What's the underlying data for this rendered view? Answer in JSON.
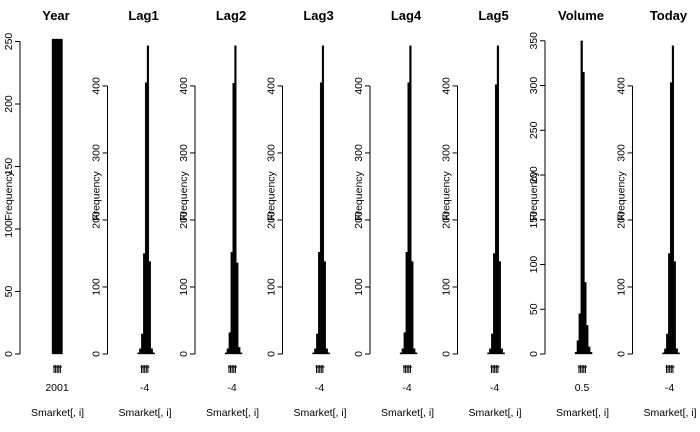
{
  "chart_data": [
    {
      "type": "histogram",
      "title": "Year",
      "xlabel": "Smarket[, i]",
      "ylabel": "Frequency",
      "ylim": [
        0,
        252
      ],
      "yticks": [
        0,
        50,
        100,
        150,
        200,
        250
      ],
      "xticks": [
        "2001"
      ],
      "bars": [
        252,
        252,
        252,
        252,
        252
      ]
    },
    {
      "type": "histogram",
      "title": "Lag1",
      "xlabel": "Smarket[, i]",
      "ylabel": "Frequency",
      "ylim": [
        0,
        470
      ],
      "yticks": [
        0,
        100,
        200,
        300,
        400
      ],
      "xticks": [
        "-4"
      ],
      "bars": [
        2,
        8,
        30,
        150,
        405,
        460,
        138,
        8,
        2
      ]
    },
    {
      "type": "histogram",
      "title": "Lag2",
      "xlabel": "Smarket[, i]",
      "ylabel": "Frequency",
      "ylim": [
        0,
        470
      ],
      "yticks": [
        0,
        100,
        200,
        300,
        400
      ],
      "xticks": [
        "-4"
      ],
      "bars": [
        2,
        8,
        32,
        152,
        404,
        460,
        136,
        10,
        2
      ]
    },
    {
      "type": "histogram",
      "title": "Lag3",
      "xlabel": "Smarket[, i]",
      "ylabel": "Frequency",
      "ylim": [
        0,
        470
      ],
      "yticks": [
        0,
        100,
        200,
        300,
        400
      ],
      "xticks": [
        "-4"
      ],
      "bars": [
        2,
        8,
        30,
        152,
        405,
        460,
        138,
        8,
        2
      ]
    },
    {
      "type": "histogram",
      "title": "Lag4",
      "xlabel": "Smarket[, i]",
      "ylabel": "Frequency",
      "ylim": [
        0,
        470
      ],
      "yticks": [
        0,
        100,
        200,
        300,
        400
      ],
      "xticks": [
        "-4"
      ],
      "bars": [
        2,
        8,
        32,
        152,
        405,
        460,
        138,
        8,
        2
      ]
    },
    {
      "type": "histogram",
      "title": "Lag5",
      "xlabel": "Smarket[, i]",
      "ylabel": "Frequency",
      "ylim": [
        0,
        470
      ],
      "yticks": [
        0,
        100,
        200,
        300,
        400
      ],
      "xticks": [
        "-4"
      ],
      "bars": [
        2,
        8,
        30,
        150,
        402,
        460,
        138,
        8,
        2
      ]
    },
    {
      "type": "histogram",
      "title": "Volume",
      "xlabel": "Smarket[, i]",
      "ylabel": "Frequency",
      "ylim": [
        0,
        352
      ],
      "yticks": [
        0,
        50,
        100,
        150,
        200,
        250,
        300,
        350
      ],
      "xticks": [
        "0.5"
      ],
      "bars": [
        2,
        15,
        45,
        350,
        315,
        80,
        32,
        8,
        2
      ]
    },
    {
      "type": "histogram",
      "title": "Today",
      "xlabel": "Smarket[, i]",
      "ylabel": "Frequency",
      "ylim": [
        0,
        470
      ],
      "yticks": [
        0,
        100,
        200,
        300,
        400
      ],
      "xticks": [
        "-4"
      ],
      "bars": [
        2,
        8,
        30,
        150,
        405,
        460,
        138,
        8,
        2
      ]
    }
  ]
}
